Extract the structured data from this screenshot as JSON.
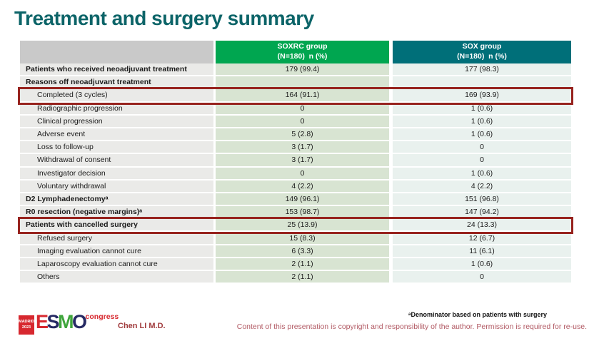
{
  "title": "Treatment and surgery summary",
  "colors": {
    "title_teal": "#0c6468",
    "header_green": "#00a650",
    "header_teal": "#006f79",
    "label_cell_bg": "#eaeae8",
    "soxrc_cell_bg": "#d8e4d2",
    "sox_cell_bg": "#e9f1ee",
    "highlight_box_red": "#97231e",
    "logo_red": "#d7282f"
  },
  "table": {
    "header": {
      "col1": "",
      "col2_line1": "SOXRC group",
      "col2_line2": "(N=180)  n (%)",
      "col3_line1": "SOX group",
      "col3_line2": "(N=180)  n (%)"
    },
    "rows": [
      {
        "label": "Patients who received neoadjuvant treatment",
        "soxrc": "179 (99.4)",
        "sox": "177 (98.3)",
        "bold": true,
        "indent": false,
        "highlight": false
      },
      {
        "label": "Reasons off neoadjuvant treatment",
        "soxrc": "",
        "sox": "",
        "bold": true,
        "indent": false,
        "highlight": false
      },
      {
        "label": "Completed (3 cycles)",
        "soxrc": "164 (91.1)",
        "sox": "169 (93.9)",
        "bold": false,
        "indent": true,
        "highlight": true
      },
      {
        "label": "Radiographic progression",
        "soxrc": "0",
        "sox": "1 (0.6)",
        "bold": false,
        "indent": true,
        "highlight": false
      },
      {
        "label": "Clinical progression",
        "soxrc": "0",
        "sox": "1 (0.6)",
        "bold": false,
        "indent": true,
        "highlight": false
      },
      {
        "label": "Adverse event",
        "soxrc": "5 (2.8)",
        "sox": "1 (0.6)",
        "bold": false,
        "indent": true,
        "highlight": false
      },
      {
        "label": "Loss to follow-up",
        "soxrc": "3 (1.7)",
        "sox": "0",
        "bold": false,
        "indent": true,
        "highlight": false
      },
      {
        "label": "Withdrawal of consent",
        "soxrc": "3 (1.7)",
        "sox": "0",
        "bold": false,
        "indent": true,
        "highlight": false
      },
      {
        "label": "Investigator decision",
        "soxrc": "0",
        "sox": "1 (0.6)",
        "bold": false,
        "indent": true,
        "highlight": false
      },
      {
        "label": "Voluntary withdrawal",
        "soxrc": "4 (2.2)",
        "sox": "4 (2.2)",
        "bold": false,
        "indent": true,
        "highlight": false
      },
      {
        "label": "D2 Lymphadenectomyᵃ",
        "soxrc": "149 (96.1)",
        "sox": "151 (96.8)",
        "bold": true,
        "indent": false,
        "highlight": false
      },
      {
        "label": "R0 resection (negative margins)ᵃ",
        "soxrc": "153 (98.7)",
        "sox": "147 (94.2)",
        "bold": true,
        "indent": false,
        "highlight": false
      },
      {
        "label": "Patients with cancelled surgery",
        "soxrc": "25 (13.9)",
        "sox": "24 (13.3)",
        "bold": true,
        "indent": false,
        "highlight": true
      },
      {
        "label": "Refused surgery",
        "soxrc": "15 (8.3)",
        "sox": "12 (6.7)",
        "bold": false,
        "indent": true,
        "highlight": false
      },
      {
        "label": "Imaging evaluation cannot cure",
        "soxrc": "6 (3.3)",
        "sox": "11 (6.1)",
        "bold": false,
        "indent": true,
        "highlight": false
      },
      {
        "label": "Laparoscopy evaluation cannot cure",
        "soxrc": "2 (1.1)",
        "sox": "1 (0.6)",
        "bold": false,
        "indent": true,
        "highlight": false
      },
      {
        "label": "Others",
        "soxrc": "2 (1.1)",
        "sox": "0",
        "bold": false,
        "indent": true,
        "highlight": false
      }
    ]
  },
  "chart_data": {
    "type": "table",
    "title": "Treatment and surgery summary",
    "columns": [
      "",
      "SOXRC group (N=180) n (%)",
      "SOX group (N=180) n (%)"
    ],
    "rows": [
      [
        "Patients who received neoadjuvant treatment",
        "179 (99.4)",
        "177 (98.3)"
      ],
      [
        "Reasons off neoadjuvant treatment",
        "",
        ""
      ],
      [
        "Completed (3 cycles)",
        "164 (91.1)",
        "169 (93.9)"
      ],
      [
        "Radiographic progression",
        "0",
        "1 (0.6)"
      ],
      [
        "Clinical progression",
        "0",
        "1 (0.6)"
      ],
      [
        "Adverse event",
        "5 (2.8)",
        "1 (0.6)"
      ],
      [
        "Loss to follow-up",
        "3 (1.7)",
        "0"
      ],
      [
        "Withdrawal of consent",
        "3 (1.7)",
        "0"
      ],
      [
        "Investigator decision",
        "0",
        "1 (0.6)"
      ],
      [
        "Voluntary withdrawal",
        "4 (2.2)",
        "4 (2.2)"
      ],
      [
        "D2 Lymphadenectomyᵃ",
        "149 (96.1)",
        "151 (96.8)"
      ],
      [
        "R0 resection (negative margins)ᵃ",
        "153 (98.7)",
        "147 (94.2)"
      ],
      [
        "Patients with cancelled surgery",
        "25 (13.9)",
        "24 (13.3)"
      ],
      [
        "Refused surgery",
        "15 (8.3)",
        "12 (6.7)"
      ],
      [
        "Imaging evaluation cannot cure",
        "6 (3.3)",
        "11 (6.1)"
      ],
      [
        "Laparoscopy evaluation cannot cure",
        "2 (1.1)",
        "1 (0.6)"
      ],
      [
        "Others",
        "2 (1.1)",
        "0"
      ]
    ]
  },
  "footer": {
    "footnote": "ᵃDenominator based on patients with surgery",
    "author": "Chen LI M.D.",
    "copyright": "Content of this presentation is copyright and responsibility of the author.  Permission is required for re-use.",
    "logo": {
      "badge_line1": "MADRID",
      "badge_line2": "2023",
      "letter_e": "E",
      "letter_s": "S",
      "letter_m": "M",
      "letter_o": "O",
      "congress": "congress"
    }
  }
}
